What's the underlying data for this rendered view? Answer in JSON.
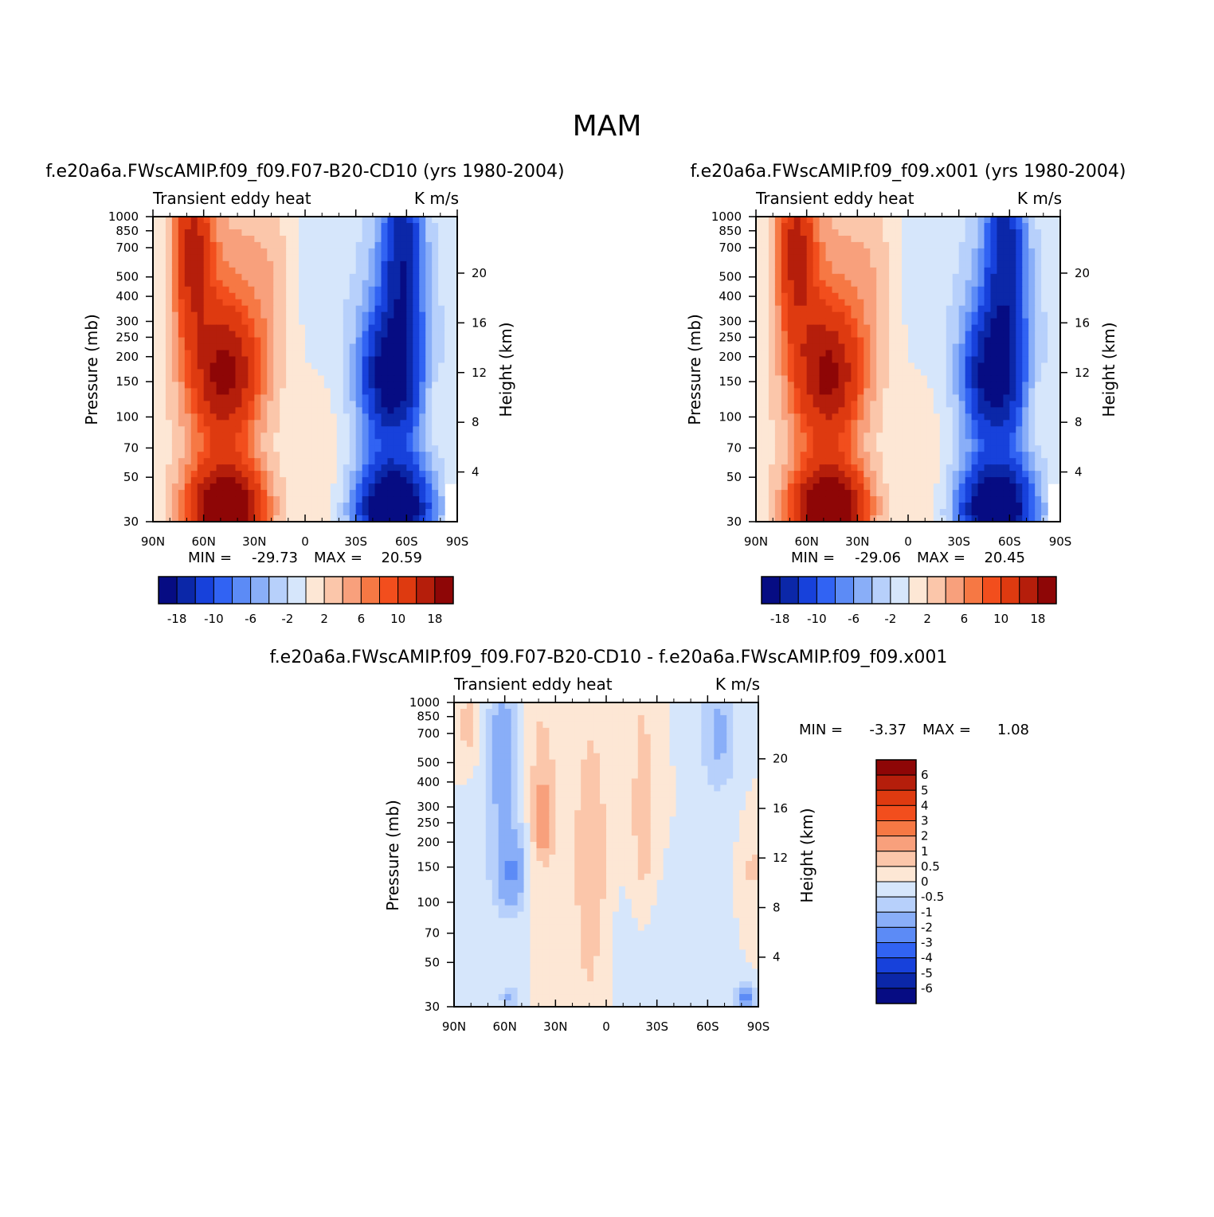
{
  "title": "MAM",
  "colors": {
    "pos": [
      "#fde7d5",
      "#fbc6aa",
      "#f8a07c",
      "#f67844",
      "#f24e1d",
      "#de3a10",
      "#b51e0b",
      "#8e0606"
    ],
    "neg": [
      "#d6e6fb",
      "#b7d0fb",
      "#89aef8",
      "#5c8bf6",
      "#3163f3",
      "#1741db",
      "#0b27a8",
      "#060c83"
    ]
  },
  "panels": [
    {
      "caption": "f.e20a6a.FWscAMIP.f09_f09.F07-B20-CD10 (yrs 1980-2004)",
      "left_title": "Transient eddy heat",
      "right_title": "K m/s",
      "y_label": "Pressure (mb)",
      "y2_label": "Height (km)",
      "min_label": "MIN = ",
      "min_value": "-29.73",
      "max_label": "MAX = ",
      "max_value": "20.59"
    },
    {
      "caption": "f.e20a6a.FWscAMIP.f09_f09.x001 (yrs 1980-2004)",
      "left_title": "Transient eddy heat",
      "right_title": "K m/s",
      "y_label": "Pressure (mb)",
      "y2_label": "Height (km)",
      "min_label": "MIN = ",
      "min_value": "-29.06",
      "max_label": "MAX = ",
      "max_value": "20.45"
    },
    {
      "caption": "f.e20a6a.FWscAMIP.f09_f09.F07-B20-CD10 - f.e20a6a.FWscAMIP.f09_f09.x001",
      "left_title": "Transient eddy heat",
      "right_title": "K m/s",
      "y_label": "Pressure (mb)",
      "y2_label": "Height (km)",
      "min_label": "MIN = ",
      "min_value": "-3.37",
      "max_label": "MAX = ",
      "max_value": "1.08"
    }
  ],
  "colorbar_horizontal": {
    "labels": [
      "-18",
      "-10",
      "-6",
      "-2",
      "2",
      "6",
      "10",
      "18"
    ]
  },
  "colorbar_vertical": {
    "labels": [
      "6",
      "5",
      "4",
      "3",
      "2",
      "1",
      "0.5",
      "0",
      "-0.5",
      "-1",
      "-2",
      "-3",
      "-4",
      "-5",
      "-6"
    ]
  },
  "chart_data": [
    {
      "type": "heatmap",
      "title": "f.e20a6a.FWscAMIP.f09_f09.F07-B20-CD10 (yrs 1980-2004)",
      "xlabel": "",
      "ylabel": "Pressure (mb)",
      "y2label": "Height (km)",
      "x_ticks": [
        "90N",
        "60N",
        "30N",
        "0",
        "30S",
        "60S",
        "90S"
      ],
      "y_ticks": [
        "30",
        "50",
        "70",
        "100",
        "150",
        "200",
        "250",
        "300",
        "400",
        "500",
        "700",
        "850",
        "1000"
      ],
      "y2_ticks": [
        "20",
        "16",
        "12",
        "8",
        "4"
      ],
      "ylim": [
        1000,
        30
      ],
      "y_scale": "log",
      "levels": [
        -18,
        -14,
        -10,
        -8,
        -6,
        -4,
        -2,
        0,
        2,
        4,
        6,
        8,
        10,
        14,
        18
      ],
      "units": "K m/s",
      "min": -29.73,
      "max": 20.59
    },
    {
      "type": "heatmap",
      "title": "f.e20a6a.FWscAMIP.f09_f09.x001 (yrs 1980-2004)",
      "xlabel": "",
      "ylabel": "Pressure (mb)",
      "y2label": "Height (km)",
      "x_ticks": [
        "90N",
        "60N",
        "30N",
        "0",
        "30S",
        "60S",
        "90S"
      ],
      "y_ticks": [
        "30",
        "50",
        "70",
        "100",
        "150",
        "200",
        "250",
        "300",
        "400",
        "500",
        "700",
        "850",
        "1000"
      ],
      "y2_ticks": [
        "20",
        "16",
        "12",
        "8",
        "4"
      ],
      "ylim": [
        1000,
        30
      ],
      "y_scale": "log",
      "levels": [
        -18,
        -14,
        -10,
        -8,
        -6,
        -4,
        -2,
        0,
        2,
        4,
        6,
        8,
        10,
        14,
        18
      ],
      "units": "K m/s",
      "min": -29.06,
      "max": 20.45
    },
    {
      "type": "heatmap",
      "title": "f.e20a6a.FWscAMIP.f09_f09.F07-B20-CD10 - f.e20a6a.FWscAMIP.f09_f09.x001",
      "xlabel": "",
      "ylabel": "Pressure (mb)",
      "y2label": "Height (km)",
      "x_ticks": [
        "90N",
        "60N",
        "30N",
        "0",
        "30S",
        "60S",
        "90S"
      ],
      "y_ticks": [
        "30",
        "50",
        "70",
        "100",
        "150",
        "200",
        "250",
        "300",
        "400",
        "500",
        "700",
        "850",
        "1000"
      ],
      "y2_ticks": [
        "20",
        "16",
        "12",
        "8",
        "4"
      ],
      "ylim": [
        1000,
        30
      ],
      "y_scale": "log",
      "levels": [
        -6,
        -5,
        -4,
        -3,
        -2,
        -1,
        -0.5,
        0,
        0.5,
        1,
        2,
        3,
        4,
        5,
        6
      ],
      "units": "K m/s",
      "min": -3.37,
      "max": 1.08
    }
  ]
}
